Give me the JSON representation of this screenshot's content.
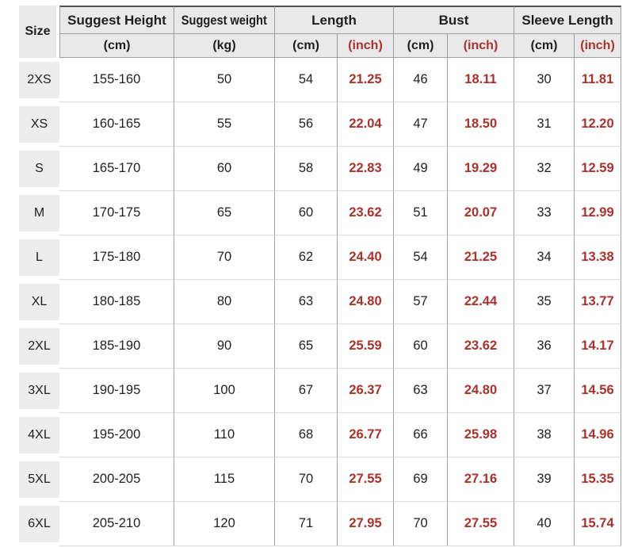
{
  "header": {
    "size_label": "Size",
    "groups": [
      {
        "label": "Suggest Height",
        "units": [
          "(cm)"
        ]
      },
      {
        "label": "Suggest weight",
        "units": [
          "(kg)"
        ]
      },
      {
        "label": "Length",
        "units": [
          "(cm)",
          "(inch)"
        ]
      },
      {
        "label": "Bust",
        "units": [
          "(cm)",
          "(inch)"
        ]
      },
      {
        "label": "Sleeve Length",
        "units": [
          "(cm)",
          "(inch)"
        ]
      }
    ]
  },
  "chart_data": {
    "type": "table",
    "columns": [
      "Size",
      "Suggest Height (cm)",
      "Suggest weight (kg)",
      "Length (cm)",
      "Length (inch)",
      "Bust (cm)",
      "Bust (inch)",
      "Sleeve Length (cm)",
      "Sleeve Length (inch)"
    ],
    "rows": [
      [
        "2XS",
        "155-160",
        "50",
        "54",
        "21.25",
        "46",
        "18.11",
        "30",
        "11.81"
      ],
      [
        "XS",
        "160-165",
        "55",
        "56",
        "22.04",
        "47",
        "18.50",
        "31",
        "12.20"
      ],
      [
        "S",
        "165-170",
        "60",
        "58",
        "22.83",
        "49",
        "19.29",
        "32",
        "12.59"
      ],
      [
        "M",
        "170-175",
        "65",
        "60",
        "23.62",
        "51",
        "20.07",
        "33",
        "12.99"
      ],
      [
        "L",
        "175-180",
        "70",
        "62",
        "24.40",
        "54",
        "21.25",
        "34",
        "13.38"
      ],
      [
        "XL",
        "180-185",
        "80",
        "63",
        "24.80",
        "57",
        "22.44",
        "35",
        "13.77"
      ],
      [
        "2XL",
        "185-190",
        "90",
        "65",
        "25.59",
        "60",
        "23.62",
        "36",
        "14.17"
      ],
      [
        "3XL",
        "190-195",
        "100",
        "67",
        "26.37",
        "63",
        "24.80",
        "37",
        "14.56"
      ],
      [
        "4XL",
        "195-200",
        "110",
        "68",
        "26.77",
        "66",
        "25.98",
        "38",
        "14.96"
      ],
      [
        "5XL",
        "200-205",
        "115",
        "70",
        "27.55",
        "69",
        "27.16",
        "39",
        "15.35"
      ],
      [
        "6XL",
        "205-210",
        "120",
        "71",
        "27.95",
        "70",
        "27.55",
        "40",
        "15.74"
      ]
    ],
    "layout": {
      "inch_columns_color": "#ab312d",
      "header_background": "#e9e9e9",
      "size_chip_background": "#ededed",
      "grid_vertical_color": "#9e9e9e",
      "grid_horizontal_color": "#dcdcdc",
      "top_rule_color": "#4f4f4f"
    }
  }
}
